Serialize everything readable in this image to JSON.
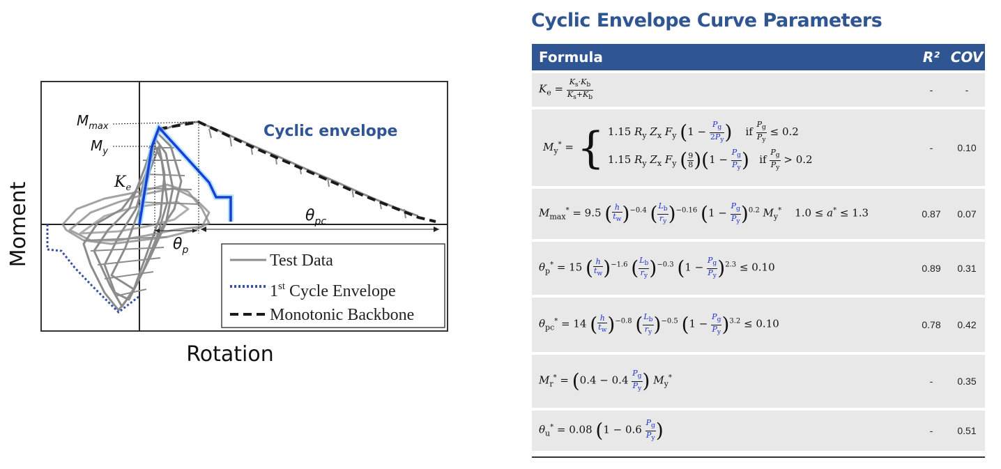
{
  "figure": {
    "axis_x_label": "Rotation",
    "axis_y_label": "Moment",
    "annotation_cyclic": "Cyclic envelope",
    "label_mmax": "M",
    "label_mmax_sub": "max",
    "label_my": "M",
    "label_my_sub": "y",
    "label_ke": "K",
    "label_ke_sub": "e",
    "label_theta_pc": "θ",
    "label_theta_pc_sub": "pc",
    "label_theta_p": "θ",
    "label_theta_p_sub": "p",
    "legend": {
      "test_data": "Test Data",
      "first_cycle_sup": "st",
      "first_cycle_pre": "1",
      "first_cycle_post": " Cycle Envelope",
      "monotonic": "Monotonic Backbone"
    },
    "colors": {
      "cyclic_envelope": "#1a3ed8",
      "first_cycle": "#3a4fa8",
      "test_data": "#8c8c8c",
      "backbone": "#1a1a1a",
      "annotation": "#2f5592"
    }
  },
  "table": {
    "title": "Cyclic Envelope Curve Parameters",
    "headers": {
      "formula": "Formula",
      "r2": "R²",
      "cov": "COV"
    },
    "rows": [
      {
        "id": "Ke",
        "r2": "-",
        "cov": "-"
      },
      {
        "id": "My",
        "r2": "-",
        "cov": "0.10"
      },
      {
        "id": "Mmax",
        "r2": "0.87",
        "cov": "0.07"
      },
      {
        "id": "theta_p",
        "r2": "0.89",
        "cov": "0.31"
      },
      {
        "id": "theta_pc",
        "r2": "0.78",
        "cov": "0.42"
      },
      {
        "id": "Mr",
        "r2": "-",
        "cov": "0.35"
      },
      {
        "id": "theta_u",
        "r2": "-",
        "cov": "0.51"
      }
    ]
  },
  "header_color": "#2f5592",
  "row_color": "#e8e8e8"
}
